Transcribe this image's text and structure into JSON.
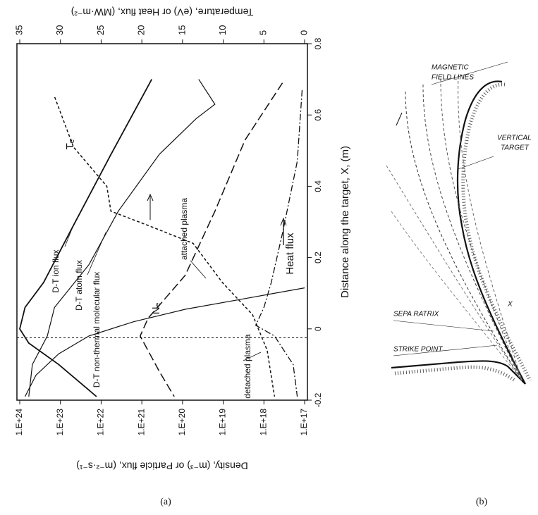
{
  "chart_data": {
    "type": "line",
    "x_label": "Distance along the target, X, (m)",
    "y_label": "Density, (m⁻³) or Particle flux, (m⁻²·s⁻¹)",
    "y2_label": "Temperature, (eV) or Heat flux, (MW·m⁻²)",
    "xlim": [
      -0.2,
      0.8
    ],
    "xticks": [
      -0.2,
      0,
      0.2,
      0.4,
      0.6,
      0.8
    ],
    "ylim": [
      1e+17,
      1e+24
    ],
    "log_y": true,
    "yticks": [
      {
        "value": 1e+24,
        "label": "1.E+24"
      },
      {
        "value": 1e+23,
        "label": "1.E+23"
      },
      {
        "value": 1e+22,
        "label": "1.E+22"
      },
      {
        "value": 1e+21,
        "label": "1.E+21"
      },
      {
        "value": 1e+20,
        "label": "1.E+20"
      },
      {
        "value": 1e+19,
        "label": "1.E+19"
      },
      {
        "value": 1e+18,
        "label": "1.E+18"
      },
      {
        "value": 1e+17,
        "label": "1.E+17"
      }
    ],
    "y2lim": [
      0,
      35
    ],
    "y2ticks": [
      35,
      30,
      25,
      20,
      15,
      10,
      5,
      0
    ],
    "reference_x": -0.025,
    "series": [
      {
        "name": "D-T ion flux",
        "color": "#111111",
        "style": "solid",
        "width": 1.8,
        "x": [
          0.7,
          0.49,
          0.29,
          0.13,
          0.06,
          0.0,
          -0.04,
          -0.1,
          -0.19
        ],
        "values": [
          5.7e+20,
          5.7e+21,
          4.8e+22,
          2.6e+23,
          7.4e+23,
          1e+24,
          6e+23,
          1.1e+23,
          1.3e+22
        ]
      },
      {
        "name": "D-T atom flux",
        "color": "#111111",
        "style": "solid",
        "width": 1.2,
        "x": [
          0.7,
          0.63,
          0.59,
          0.49,
          0.33,
          0.18,
          0.06,
          -0.02,
          -0.1,
          -0.19
        ],
        "values": [
          4e+19,
          1.6e+19,
          4.6e+19,
          3.7e+20,
          3.8e+21,
          2e+22,
          1.4e+23,
          2.1e+23,
          4.9e+23,
          6e+23
        ]
      },
      {
        "name": "D-T non-thermal molecular flux",
        "color": "#111111",
        "style": "solid",
        "width": 1.2,
        "x": [
          0.115,
          0.085,
          0.055,
          0.02,
          -0.02,
          -0.07,
          -0.13,
          -0.19
        ],
        "values": [
          1e+17,
          2.9e+18,
          8.6e+19,
          1.6e+21,
          2e+22,
          1.1e+23,
          4e+23,
          7.4e+23
        ]
      },
      {
        "name": "Nₑ",
        "color": "#111111",
        "style": "longdash",
        "width": 1.5,
        "x": [
          0.69,
          0.53,
          0.33,
          0.15,
          0.03,
          -0.02,
          -0.12,
          -0.19
        ],
        "values": [
          3.5e+17,
          2.9e+18,
          1.6e+19,
          8.6e+19,
          7e+20,
          1.1e+21,
          3.7e+20,
          1.6e+20
        ]
      },
      {
        "name": "Tₑ",
        "color": "#111111",
        "style": "shortdash",
        "width": 1.5,
        "axis": "y2",
        "x": [
          0.65,
          0.51,
          0.4,
          0.33,
          0.29,
          0.24,
          0.13,
          0.04,
          -0.06,
          -0.19
        ],
        "values": [
          30.7,
          28.4,
          24.3,
          23.8,
          19.2,
          13.7,
          10.1,
          6.4,
          4.6,
          3.7
        ]
      },
      {
        "name": "Heat flux",
        "color": "#111111",
        "style": "dashdot",
        "width": 1.3,
        "axis": "y2",
        "x": [
          0.67,
          0.47,
          0.27,
          0.13,
          0.06,
          0.01,
          -0.02,
          -0.1,
          -0.19
        ],
        "values": [
          0.3,
          0.9,
          2.7,
          4.1,
          5.0,
          6.0,
          3.7,
          1.4,
          0.9
        ]
      }
    ],
    "annotations": [
      "attached plasma",
      "detached plasma"
    ],
    "panel_label": "(a)"
  },
  "diagram": {
    "labels": [
      "MAGNETIC",
      "FIELD LINES",
      "VERTICAL",
      "TARGET",
      "SEPA RATRIX",
      "STRIKE POINT",
      "X"
    ],
    "panel_label": "(b)"
  }
}
